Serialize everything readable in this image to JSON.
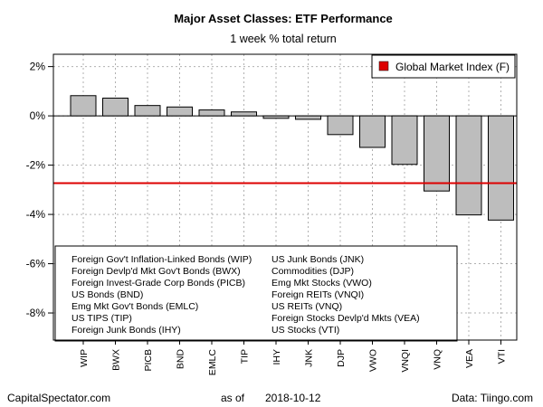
{
  "chart_data": {
    "type": "bar",
    "title": "Major Asset Classes: ETF Performance",
    "subtitle": "1 week % total return",
    "categories": [
      "WIP",
      "BWX",
      "PICB",
      "BND",
      "EMLC",
      "TIP",
      "IHY",
      "JNK",
      "DJP",
      "VWO",
      "VNQI",
      "VNQ",
      "VEA",
      "VTI"
    ],
    "values": [
      0.82,
      0.72,
      0.42,
      0.36,
      0.24,
      0.16,
      -0.1,
      -0.14,
      -0.76,
      -1.28,
      -1.97,
      -3.05,
      -4.02,
      -4.23
    ],
    "ylim": [
      -9.1,
      2.5
    ],
    "yticks": [
      2,
      0,
      -2,
      -4,
      -6,
      -8
    ],
    "ytick_labels": [
      "2%",
      "0%",
      "-2%",
      "-4%",
      "-6%",
      "-8%"
    ],
    "grid": true,
    "bar_color": "#bdbdbd",
    "reference_line": {
      "name": "Global Market Index (F)",
      "value": -2.73,
      "color": "#dd0000"
    },
    "legend": {
      "position": "top-right",
      "label": "Global Market Index (F)"
    },
    "annotation_left": [
      "Foreign Gov't Inflation-Linked Bonds (WIP)",
      "Foreign Devlp'd Mkt Gov't Bonds (BWX)",
      "Foreign Invest-Grade Corp Bonds (PICB)",
      "US Bonds (BND)",
      "Emg Mkt Gov't Bonds (EMLC)",
      "US TIPS (TIP)",
      "Foreign Junk Bonds (IHY)"
    ],
    "annotation_right": [
      "US Junk Bonds (JNK)",
      "Commodities (DJP)",
      "Emg Mkt Stocks (VWO)",
      "Foreign REITs (VNQI)",
      "US REITs (VNQ)",
      "Foreign Stocks Devlp'd Mkts (VEA)",
      "US Stocks (VTI)"
    ]
  },
  "footer": {
    "left": "CapitalSpectator.com",
    "center_prefix": "as of",
    "date": "2018-10-12",
    "right": "Data: Tiingo.com"
  }
}
